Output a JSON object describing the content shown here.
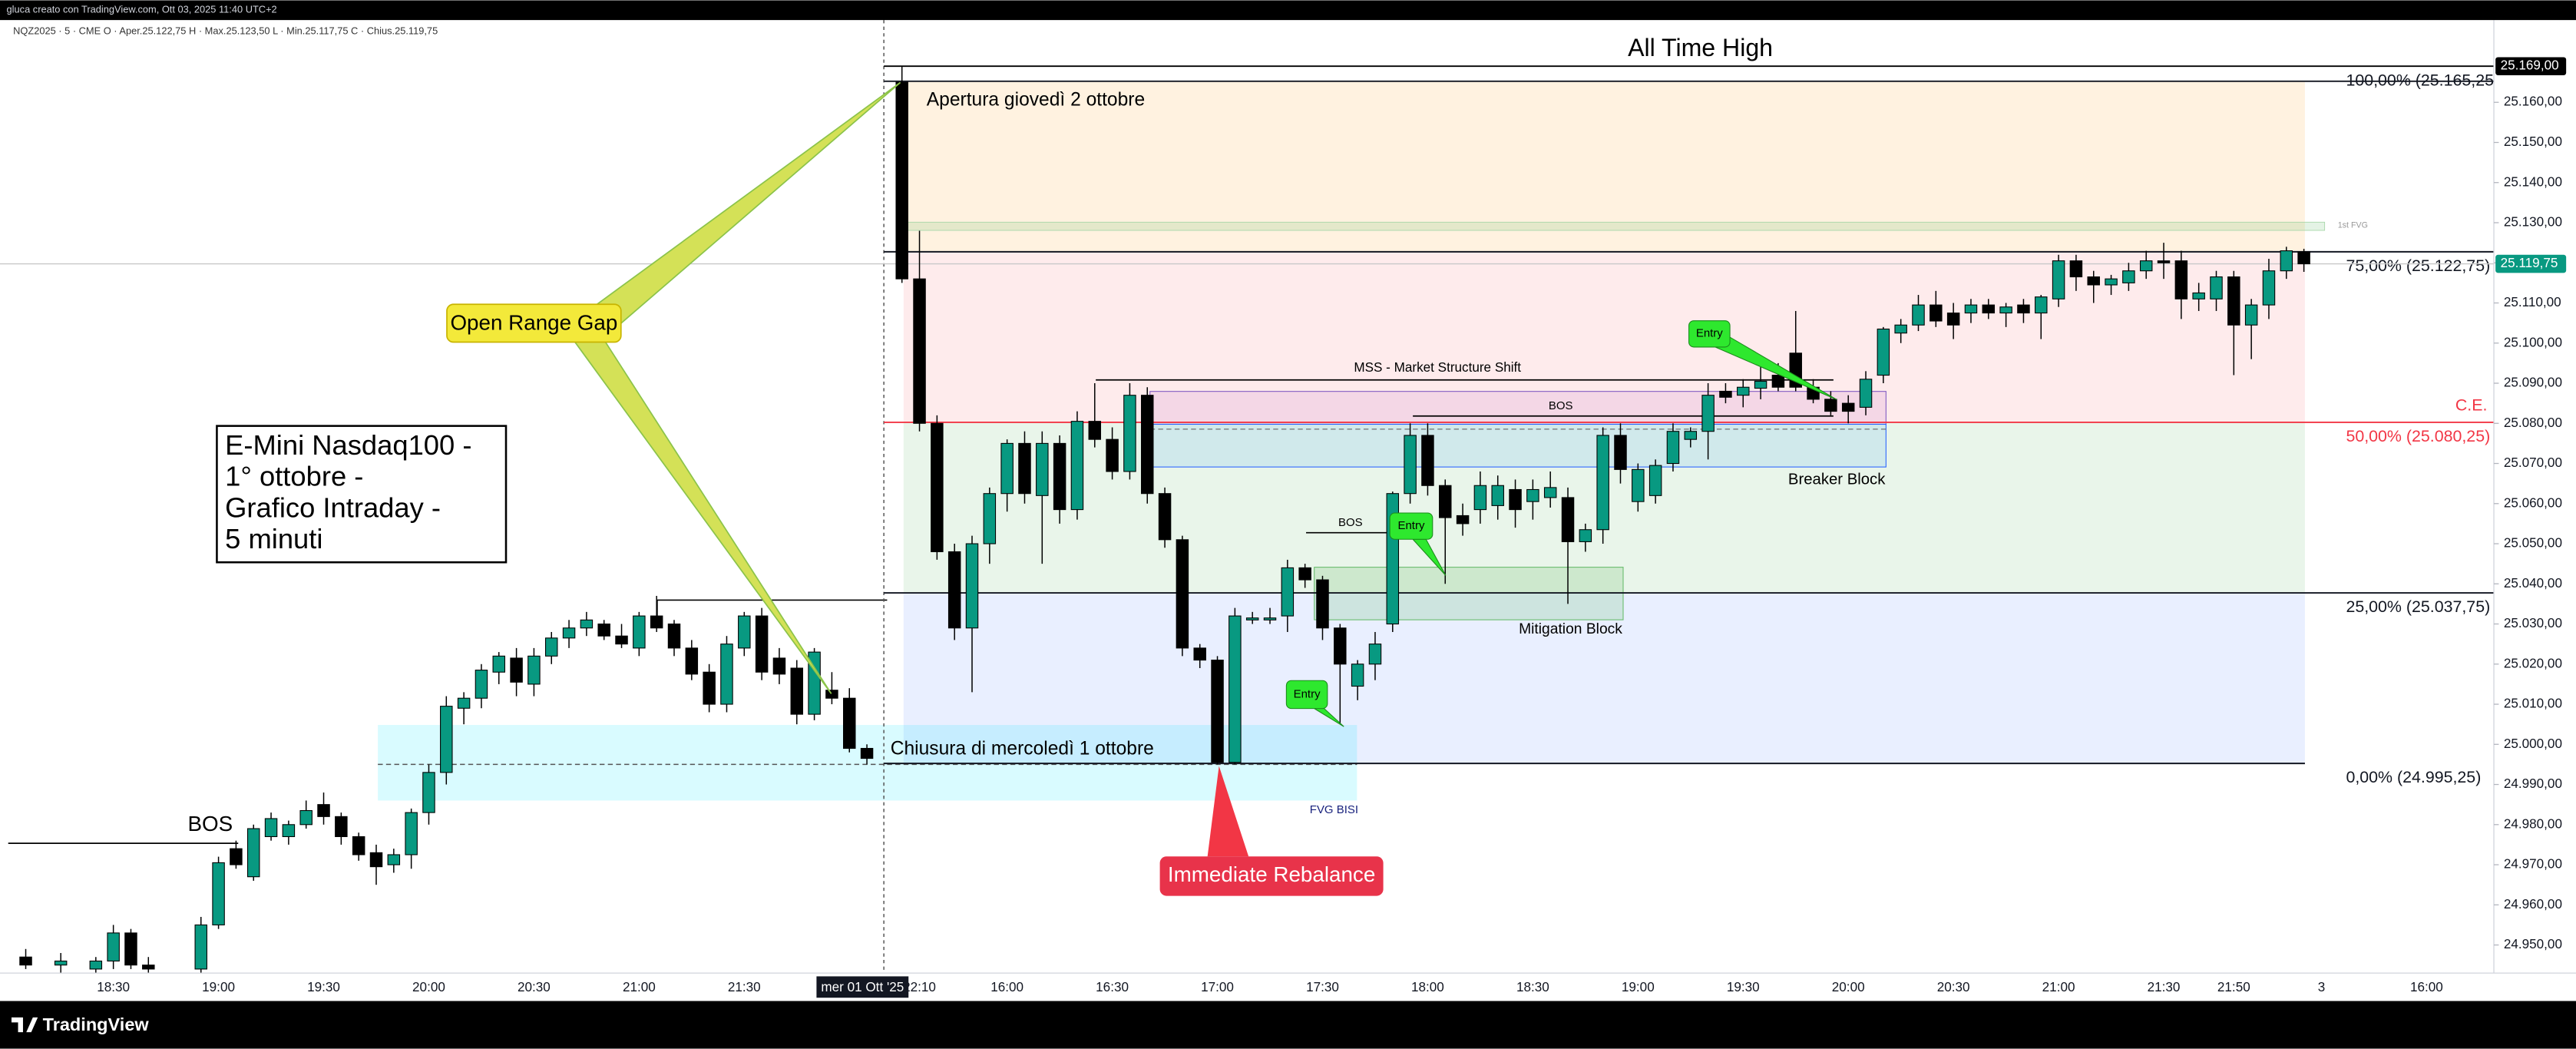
{
  "header": {
    "text": "gluca creato con TradingView.com, Ott 03, 2025 11:40 UTC+2"
  },
  "chart_data": {
    "type": "candlestick",
    "symbol_legend": "NQZ2025 · 5 · CME  O · Aper.25.122,75  H · Max.25.123,50  L · Min.25.117,75  C · Chius.25.119,75",
    "title_lines": [
      "E-Mini Nasdaq100 -",
      "1° ottobre -",
      "Grafico Intraday -",
      "5 minuti"
    ],
    "crosshair_label": "mer 01 Ott '25",
    "up_color": "#089981",
    "down_color": "#000000",
    "categories": [
      null,
      null,
      null,
      null,
      null,
      null,
      "18:30",
      null,
      null,
      null,
      null,
      null,
      "19:00",
      null,
      null,
      null,
      null,
      null,
      "19:30",
      null,
      null,
      null,
      null,
      null,
      "20:00",
      null,
      null,
      null,
      null,
      null,
      "20:30",
      null,
      null,
      null,
      null,
      null,
      "21:00",
      null,
      null,
      null,
      null,
      null,
      "21:30",
      null,
      null,
      null,
      null,
      null,
      null,
      null,
      null,
      null,
      "22:10",
      null,
      null,
      null,
      null,
      "16:00",
      null,
      null,
      null,
      null,
      null,
      "16:30",
      null,
      null,
      null,
      null,
      null,
      "17:00",
      null,
      null,
      null,
      null,
      null,
      "17:30",
      null,
      null,
      null,
      null,
      null,
      "18:00",
      null,
      null,
      null,
      null,
      null,
      "18:30",
      null,
      null,
      null,
      null,
      null,
      "19:00",
      null,
      null,
      null,
      null,
      null,
      "19:30",
      null,
      null,
      null,
      null,
      null,
      "20:00",
      null,
      null,
      null,
      null,
      null,
      "20:30",
      null,
      null,
      null,
      null,
      null,
      "21:00",
      null,
      null,
      null,
      null,
      null,
      "21:30",
      null,
      null,
      null,
      "21:50",
      null,
      null,
      null,
      null,
      "3",
      null,
      null,
      null,
      null,
      null,
      "16:00",
      null,
      null
    ],
    "open": [
      null,
      24947,
      null,
      24945,
      null,
      24944,
      24946,
      24953,
      24945,
      null,
      null,
      24944,
      24955,
      24974,
      24967,
      24977,
      24977,
      24980,
      24985,
      24982,
      24977,
      24973,
      24970,
      24972.5,
      24983,
      24993,
      25009,
      25011.5,
      25018,
      25021.5,
      25015,
      25022,
      25026.5,
      25029,
      25030,
      25027,
      25024,
      25032,
      25030,
      25024,
      25018,
      25010,
      25024,
      25032,
      25021.5,
      25019,
      25007.5,
      25013.5,
      25011.5,
      24999,
      null,
      25165,
      25116,
      25080,
      25048,
      25029,
      25050,
      25062.5,
      25075,
      25062,
      25075,
      25058.5,
      25080.5,
      25076,
      25068,
      25087,
      25062.5,
      25051,
      25024,
      25021,
      24995.5,
      25031,
      25031,
      25032,
      25044,
      25041,
      25029,
      25014.5,
      25020,
      25030,
      25062.5,
      25077,
      25064.5,
      25057,
      25058.5,
      25059.5,
      25063.5,
      25060.5,
      25061.5,
      25061.5,
      25050.5,
      25053.5,
      25077,
      25060.5,
      25062,
      25070,
      25076,
      25078,
      25088,
      25087,
      25088.75,
      25092,
      25097.5,
      25089,
      25086,
      25085,
      25084,
      25092,
      25102.5,
      25104.5,
      25109.5,
      25107.5,
      25107.5,
      25109.5,
      25107.5,
      25109.5,
      25107.5,
      25111,
      25120.5,
      25116.5,
      25114.5,
      25115,
      25118,
      25120.5,
      25120.5,
      25111,
      25111,
      25116.5,
      25104.5,
      25109.5,
      25118,
      25122.75,
      null,
      null,
      null,
      null,
      null,
      null,
      null,
      null,
      null
    ],
    "high": [
      null,
      24949,
      null,
      24948,
      null,
      24947,
      24955,
      24954,
      24947,
      null,
      null,
      24957,
      24972,
      24976,
      24980,
      24983,
      24981,
      24986,
      24988,
      24983,
      24978,
      24975,
      24974,
      24984,
      24995,
      25012,
      25013,
      25020,
      25023,
      25024,
      25024,
      25028,
      25031,
      25033,
      25031,
      25030,
      25033,
      25037,
      25031,
      25026,
      25020,
      25027,
      25033,
      25034,
      25024,
      25021,
      25024,
      25018,
      25014,
      25000,
      null,
      25169,
      25128,
      25082,
      25050,
      25052,
      25064,
      25076,
      25078,
      25078,
      25077,
      25083,
      25090,
      25079,
      25090,
      25089,
      25064,
      25052,
      25025,
      25022,
      25034,
      25033,
      25034,
      25046,
      25045,
      25042,
      25030,
      25021,
      25028,
      25063,
      25080,
      25080,
      25066,
      25060,
      25068,
      25067,
      25066,
      25066,
      25068,
      25064,
      25055,
      25079,
      25080,
      25070,
      25071,
      25080,
      25079,
      25090,
      25090,
      25091,
      25096,
      25095,
      25108,
      25091,
      25088,
      25087,
      25093,
      25104,
      25106,
      25112,
      25113,
      25110,
      25111,
      25111,
      25110,
      25111,
      25112,
      25122,
      25122,
      25118,
      25117,
      25120,
      25123,
      25125,
      25123,
      25115,
      25118,
      25118,
      25111,
      25121,
      25124,
      25123.5,
      null,
      null,
      null,
      null,
      null,
      null,
      null,
      null,
      null
    ],
    "low": [
      null,
      24944,
      null,
      24943,
      null,
      24943,
      24944,
      24944,
      24943,
      null,
      null,
      24943,
      24954,
      24969,
      24966,
      24976,
      24975,
      24979,
      24980,
      24975,
      24971,
      24965,
      24968,
      24969,
      24980,
      24990,
      25005,
      25009,
      25015,
      25012,
      25012,
      25020,
      25024,
      25027,
      25026,
      25024,
      25022,
      25028,
      25022,
      25016,
      25008,
      25008,
      25022,
      25016,
      25015,
      25005,
      25006,
      25010,
      24998,
      24995,
      null,
      25115,
      25078,
      25046,
      25026,
      25013,
      25045,
      25058,
      25060,
      25045,
      25055,
      25056,
      25074,
      25066,
      25066,
      25060,
      25049,
      25022,
      25019,
      24995,
      24995,
      25030,
      25030,
      25028,
      25039,
      25026,
      25005,
      25011,
      25016,
      25028,
      25060,
      25062,
      25040,
      25052,
      25055,
      25056,
      25054,
      25056,
      25059,
      25035,
      25048,
      25050,
      25065,
      25058,
      25060,
      25068,
      25074,
      25071,
      25085,
      25084,
      25086,
      25088,
      25088,
      25085,
      25082,
      25080,
      25082,
      25090,
      25100,
      25103,
      25104,
      25101,
      25105,
      25106,
      25104,
      25105,
      25101,
      25109,
      25113,
      25110,
      25112,
      25113,
      25116,
      25116,
      25106,
      25108,
      25108,
      25092,
      25096,
      25106,
      25116,
      25117.75,
      null,
      null,
      null,
      null,
      null,
      null,
      null,
      null,
      null
    ],
    "close": [
      null,
      24945,
      null,
      24946,
      null,
      24946,
      24953,
      24945,
      24944,
      null,
      null,
      24955,
      24970.5,
      24970,
      24979,
      24981.5,
      24980,
      24983.5,
      24982,
      24977,
      24972.5,
      24969.5,
      24972.5,
      24983,
      24993,
      25009.5,
      25011.5,
      25018.5,
      25022,
      25015.5,
      25022,
      25026.5,
      25029,
      25031,
      25027,
      25025,
      25032,
      25029,
      25024,
      25017.5,
      25010,
      25025,
      25032,
      25018,
      25017.5,
      25007.5,
      25023,
      25011.5,
      24999,
      24996.5,
      null,
      25116,
      25080,
      25048,
      25029,
      25050,
      25062.5,
      25075,
      25062.5,
      25075,
      25058.5,
      25080.5,
      25076,
      25068,
      25087,
      25062.5,
      25051,
      25024,
      25021,
      24995.5,
      25032,
      25031.5,
      25031.5,
      25044,
      25041,
      25029,
      25020,
      25020,
      25025,
      25062.5,
      25077,
      25064.5,
      25056.5,
      25055,
      25064.5,
      25064.5,
      25058.5,
      25063.5,
      25064,
      25050.5,
      25053.5,
      25077,
      25068.5,
      25068.5,
      25069.5,
      25078,
      25078,
      25087,
      25086.5,
      25089,
      25090.5,
      25089,
      25089,
      25086,
      25083,
      25083,
      25091,
      25103.5,
      25104.5,
      25109.5,
      25105.5,
      25104.5,
      25109.5,
      25107.5,
      25109,
      25107.5,
      25111.5,
      25120.5,
      25116.5,
      25114.5,
      25116,
      25118,
      25120.5,
      25120,
      25111,
      25112.5,
      25116.5,
      25104.5,
      25109.5,
      25118,
      25123,
      25119.75,
      null,
      null,
      null,
      null,
      null,
      null,
      null,
      null,
      null
    ],
    "ylim": [
      24943,
      25180.5
    ],
    "yticks": [
      {
        "value": 24950,
        "label": "24.950,00"
      },
      {
        "value": 24960,
        "label": "24.960,00"
      },
      {
        "value": 24970,
        "label": "24.970,00"
      },
      {
        "value": 24980,
        "label": "24.980,00"
      },
      {
        "value": 24990,
        "label": "24.990,00"
      },
      {
        "value": 25000,
        "label": "25.000,00"
      },
      {
        "value": 25010,
        "label": "25.010,00"
      },
      {
        "value": 25020,
        "label": "25.020,00"
      },
      {
        "value": 25030,
        "label": "25.030,00"
      },
      {
        "value": 25040,
        "label": "25.040,00"
      },
      {
        "value": 25050,
        "label": "25.050,00"
      },
      {
        "value": 25060,
        "label": "25.060,00"
      },
      {
        "value": 25070,
        "label": "25.070,00"
      },
      {
        "value": 25080,
        "label": "25.080,00"
      },
      {
        "value": 25090,
        "label": "25.090,00"
      },
      {
        "value": 25100,
        "label": "25.100,00"
      },
      {
        "value": 25110,
        "label": "25.110,00"
      },
      {
        "value": 25120,
        "label": "25.120,00"
      },
      {
        "value": 25130,
        "label": "25.130,00"
      },
      {
        "value": 25140,
        "label": "25.140,00"
      },
      {
        "value": 25150,
        "label": "25.150,00"
      },
      {
        "value": 25160,
        "label": "25.160,00"
      }
    ],
    "price_labels": [
      {
        "value": 25169,
        "label": "25.169,00",
        "color": "#000000"
      },
      {
        "value": 25119.75,
        "label": "25.119,75",
        "color": "#089981"
      }
    ],
    "fib_levels": [
      {
        "value": 25165.25,
        "label": "100,00% (25.165,25)",
        "color": "#131722"
      },
      {
        "value": 25122.75,
        "label": "75,00% (25.122,75)",
        "color": "#131722"
      },
      {
        "value": 25080.25,
        "label": "50,00% (25.080,25)",
        "color": "#f23645"
      },
      {
        "value": 25037.75,
        "label": "25,00% (25.037,75)",
        "color": "#131722"
      },
      {
        "value": 24995.25,
        "label": "0,00% (24.995,25)",
        "color": "#131722"
      }
    ],
    "band_colors": [
      "rgba(255,152,0,0.12)",
      "rgba(242,54,69,0.10)",
      "rgba(76,175,80,0.12)",
      "rgba(41,98,255,0.10)"
    ],
    "annotations": {
      "all_time_high": "All Time High",
      "opening": "Apertura giovedì 2 ottobre",
      "close_prev": "Chiusura di mercoledì 1 ottobre",
      "open_range_gap": "Open Range Gap",
      "immediate_rebalance": "Immediate Rebalance",
      "mss": "MSS - Market Structure Shift",
      "bos": [
        "BOS",
        "BOS",
        "BOS"
      ],
      "entry": [
        "Entry",
        "Entry",
        "Entry"
      ],
      "breaker_block": "Breaker Block",
      "mitigation_block": "Mitigation Block",
      "fvg_bisi": "FVG BISI",
      "first_fvg": "1st FVG",
      "ce": "C.E."
    }
  },
  "footer": {
    "brand": "TradingView"
  }
}
